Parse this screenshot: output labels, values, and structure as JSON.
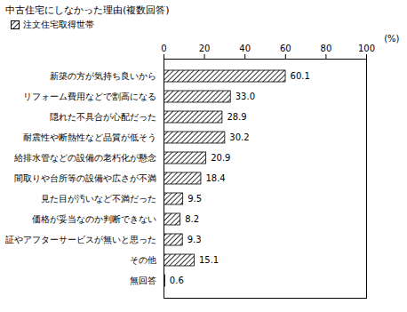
{
  "chart_data": {
    "type": "bar",
    "orientation": "horizontal",
    "title": "中古住宅にしなかった理由(複数回答)",
    "categories": [
      "新築の方が気持ち良いから",
      "リフォーム費用などで割高になる",
      "隠れた不具合が心配だった",
      "耐震性や断熱性など品質が低そう",
      "給排水管などの設備の老朽化が懸念",
      "間取りや台所等の設備や広さが不満",
      "見た目が汚いなど不満だった",
      "価格が妥当なのか判断できない",
      "保証やアフターサービスが無いと思った",
      "その他",
      "無回答"
    ],
    "series": [
      {
        "name": "注文住宅取得世帯",
        "color": "#000000",
        "values": [
          60.1,
          33.0,
          28.9,
          30.2,
          20.9,
          18.4,
          9.5,
          8.2,
          9.3,
          15.1,
          0.6
        ],
        "value_labels": [
          "60.1",
          "33.0",
          "28.9",
          "30.2",
          "20.9",
          "18.4",
          "9.5",
          "8.2",
          "9.3",
          "15.1",
          "0.6"
        ]
      }
    ],
    "xlabel": "(%)",
    "xlim": [
      0,
      100
    ],
    "xticks": [
      0,
      20,
      40,
      60,
      80,
      100
    ],
    "grid": false,
    "data_labels": true,
    "legend": "top"
  }
}
